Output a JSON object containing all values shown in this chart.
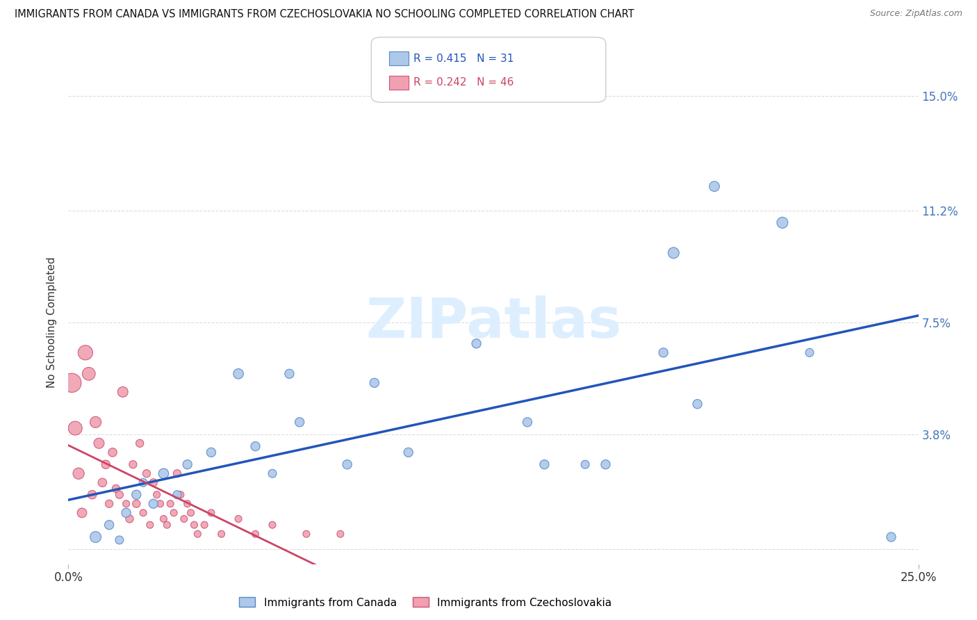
{
  "title": "IMMIGRANTS FROM CANADA VS IMMIGRANTS FROM CZECHOSLOVAKIA NO SCHOOLING COMPLETED CORRELATION CHART",
  "source": "Source: ZipAtlas.com",
  "ylabel": "No Schooling Completed",
  "xlim": [
    0.0,
    0.25
  ],
  "ylim": [
    -0.005,
    0.155
  ],
  "ytick_labels": [
    "",
    "3.8%",
    "7.5%",
    "11.2%",
    "15.0%"
  ],
  "ytick_values": [
    0.0,
    0.038,
    0.075,
    0.112,
    0.15
  ],
  "xtick_labels": [
    "0.0%",
    "25.0%"
  ],
  "xtick_values": [
    0.0,
    0.25
  ],
  "legend1_label": "Immigrants from Canada",
  "legend2_label": "Immigrants from Czechoslovakia",
  "R_canada": 0.415,
  "N_canada": 31,
  "R_czech": 0.242,
  "N_czech": 46,
  "canada_color": "#adc8e8",
  "canada_edge": "#5588cc",
  "czech_color": "#f0a0b0",
  "czech_edge": "#cc5577",
  "canada_line_color": "#2255bb",
  "czech_line_color": "#cc4466",
  "trend_dash_color": "#cc8899",
  "watermark_color": "#ddeeff",
  "canada_x": [
    0.008,
    0.012,
    0.015,
    0.017,
    0.02,
    0.022,
    0.025,
    0.028,
    0.032,
    0.035,
    0.042,
    0.05,
    0.055,
    0.06,
    0.065,
    0.068,
    0.082,
    0.09,
    0.1,
    0.12,
    0.135,
    0.14,
    0.152,
    0.158,
    0.175,
    0.178,
    0.185,
    0.19,
    0.21,
    0.218,
    0.242
  ],
  "canada_y": [
    0.004,
    0.008,
    0.003,
    0.012,
    0.018,
    0.022,
    0.015,
    0.025,
    0.018,
    0.028,
    0.032,
    0.058,
    0.034,
    0.025,
    0.058,
    0.042,
    0.028,
    0.055,
    0.032,
    0.068,
    0.042,
    0.028,
    0.028,
    0.028,
    0.065,
    0.098,
    0.048,
    0.12,
    0.108,
    0.065,
    0.004
  ],
  "canada_sizes": [
    12,
    10,
    9,
    10,
    10,
    9,
    10,
    11,
    9,
    10,
    10,
    11,
    10,
    9,
    10,
    10,
    10,
    10,
    10,
    10,
    10,
    10,
    9,
    10,
    10,
    12,
    10,
    11,
    12,
    9,
    10
  ],
  "czech_x": [
    0.001,
    0.002,
    0.003,
    0.004,
    0.005,
    0.006,
    0.007,
    0.008,
    0.009,
    0.01,
    0.011,
    0.012,
    0.013,
    0.014,
    0.015,
    0.016,
    0.017,
    0.018,
    0.019,
    0.02,
    0.021,
    0.022,
    0.023,
    0.024,
    0.025,
    0.026,
    0.027,
    0.028,
    0.029,
    0.03,
    0.031,
    0.032,
    0.033,
    0.034,
    0.035,
    0.036,
    0.037,
    0.038,
    0.04,
    0.042,
    0.045,
    0.05,
    0.055,
    0.06,
    0.07,
    0.08
  ],
  "czech_y": [
    0.055,
    0.04,
    0.025,
    0.012,
    0.065,
    0.058,
    0.018,
    0.042,
    0.035,
    0.022,
    0.028,
    0.015,
    0.032,
    0.02,
    0.018,
    0.052,
    0.015,
    0.01,
    0.028,
    0.015,
    0.035,
    0.012,
    0.025,
    0.008,
    0.022,
    0.018,
    0.015,
    0.01,
    0.008,
    0.015,
    0.012,
    0.025,
    0.018,
    0.01,
    0.015,
    0.012,
    0.008,
    0.005,
    0.008,
    0.012,
    0.005,
    0.01,
    0.005,
    0.008,
    0.005,
    0.005
  ],
  "czech_sizes": [
    22,
    16,
    13,
    11,
    17,
    15,
    10,
    13,
    12,
    10,
    10,
    9,
    10,
    9,
    9,
    12,
    8,
    9,
    9,
    9,
    9,
    8,
    9,
    8,
    9,
    8,
    8,
    8,
    8,
    8,
    8,
    9,
    8,
    8,
    8,
    8,
    8,
    8,
    8,
    8,
    8,
    8,
    8,
    8,
    8,
    8
  ]
}
